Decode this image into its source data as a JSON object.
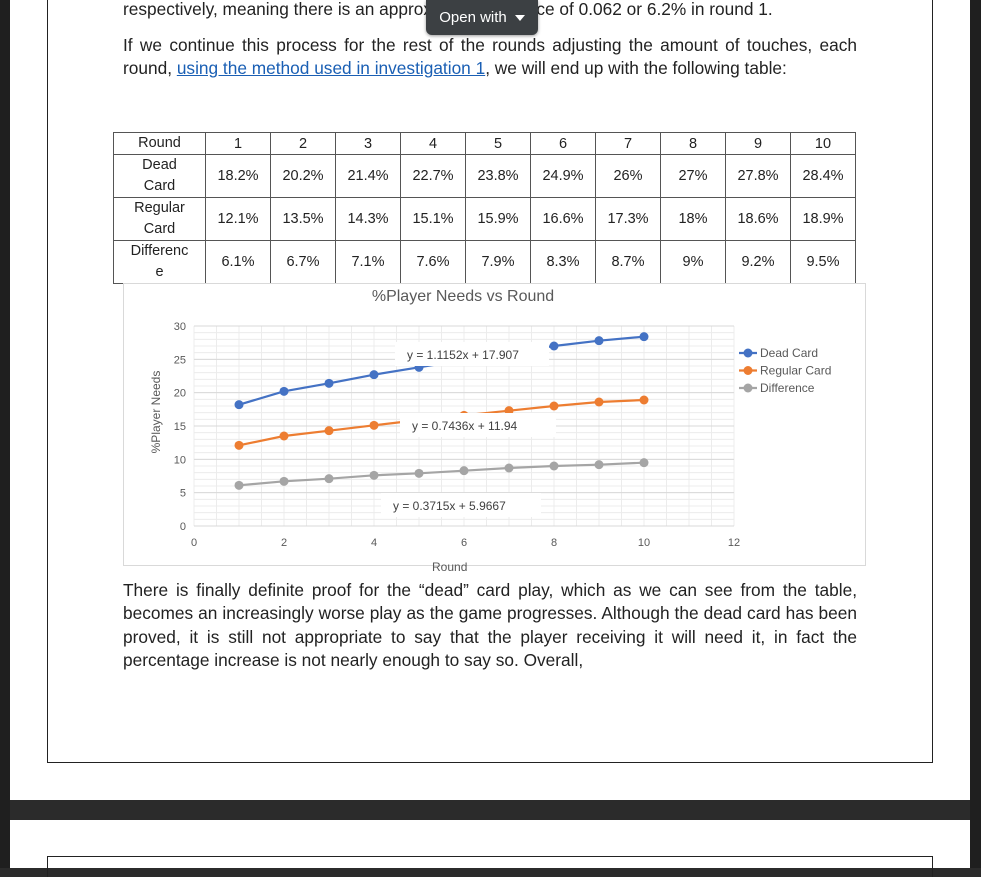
{
  "viewer": {
    "open_with_label": "Open with"
  },
  "document": {
    "para1": "respectively, meaning there is an approximate difference of 0.062 or 6.2% in round 1.",
    "para2_before": "If we continue this process for the rest of the rounds adjusting the amount of touches, each round, ",
    "para2_link": "using the method used in investigation 1",
    "para2_after": ", we will end up with the following table:",
    "para3": "There is finally definite proof for the “dead” card play, which as we can see from the table, becomes an increasingly worse play as the game progresses. Although the dead card has been proved, it is still not appropriate to say that the player receiving it will need it, in fact the percentage increase is not nearly enough to say so. Overall,"
  },
  "table": {
    "header_label": "Round",
    "rounds": [
      "1",
      "2",
      "3",
      "4",
      "5",
      "6",
      "7",
      "8",
      "9",
      "10"
    ],
    "rows": [
      {
        "label_line1": "Dead",
        "label_line2": "Card",
        "values": [
          "18.2%",
          "20.2%",
          "21.4%",
          "22.7%",
          "23.8%",
          "24.9%",
          "26%",
          "27%",
          "27.8%",
          "28.4%"
        ]
      },
      {
        "label_line1": "Regular",
        "label_line2": "Card",
        "values": [
          "12.1%",
          "13.5%",
          "14.3%",
          "15.1%",
          "15.9%",
          "16.6%",
          "17.3%",
          "18%",
          "18.6%",
          "18.9%"
        ]
      },
      {
        "label_line1": "Differenc",
        "label_line2": "e",
        "values": [
          "6.1%",
          "6.7%",
          "7.1%",
          "7.6%",
          "7.9%",
          "8.3%",
          "8.7%",
          "9%",
          "9.2%",
          "9.5%"
        ]
      }
    ]
  },
  "chart_data": {
    "type": "line",
    "title": "%Player Needs vs Round",
    "xlabel": "Round",
    "ylabel": "%Player Needs",
    "xlim": [
      0,
      12
    ],
    "ylim": [
      0,
      30
    ],
    "xticks": [
      0,
      2,
      4,
      6,
      8,
      10,
      12
    ],
    "yticks": [
      0,
      5,
      10,
      15,
      20,
      25,
      30
    ],
    "grid": true,
    "legend_position": "right",
    "x": [
      1,
      2,
      3,
      4,
      5,
      6,
      7,
      8,
      9,
      10
    ],
    "series": [
      {
        "name": "Dead Card",
        "color": "#4472c4",
        "values": [
          18.2,
          20.2,
          21.4,
          22.7,
          23.8,
          24.9,
          26,
          27,
          27.8,
          28.4
        ]
      },
      {
        "name": "Regular Card",
        "color": "#ed7d31",
        "values": [
          12.1,
          13.5,
          14.3,
          15.1,
          15.9,
          16.6,
          17.3,
          18,
          18.6,
          18.9
        ]
      },
      {
        "name": "Difference",
        "color": "#a5a5a5",
        "values": [
          6.1,
          6.7,
          7.1,
          7.6,
          7.9,
          8.3,
          8.7,
          9,
          9.2,
          9.5
        ]
      }
    ],
    "trendline_labels": [
      "y = 1.1152x + 17.907",
      "y = 0.7436x + 11.94",
      "y = 0.3715x + 5.9667"
    ]
  }
}
